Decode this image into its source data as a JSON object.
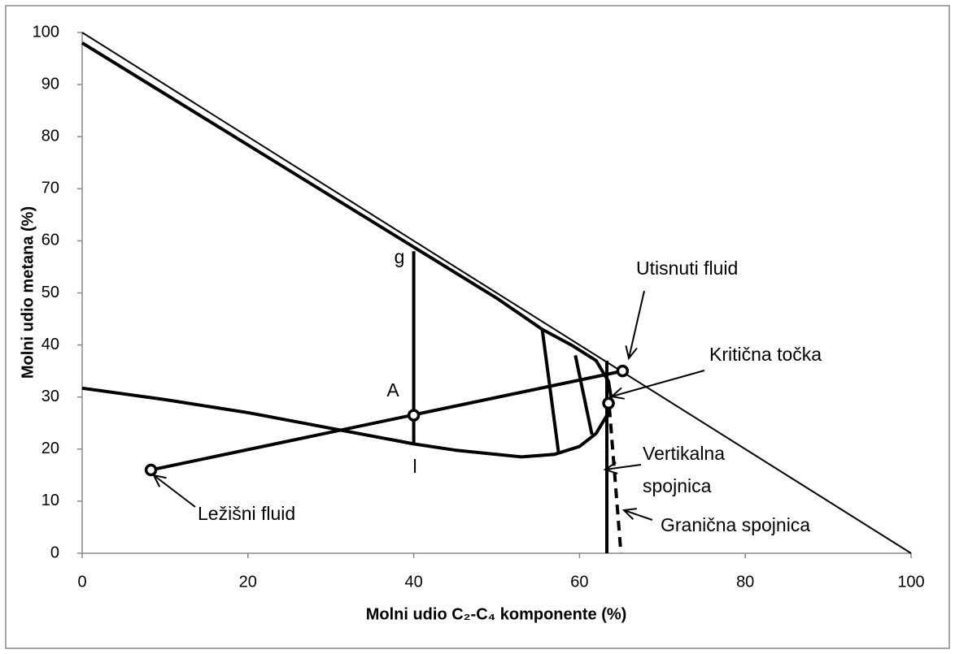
{
  "chart_data": {
    "type": "line",
    "xlabel": "Molni udio C₂-C₄ komponente (%)",
    "ylabel": "Molni udio metana  (%)",
    "xlim": [
      0,
      100
    ],
    "ylim": [
      0,
      100
    ],
    "xticks": [
      0,
      20,
      40,
      60,
      80,
      100
    ],
    "yticks": [
      0,
      10,
      20,
      30,
      40,
      50,
      60,
      70,
      80,
      90,
      100
    ],
    "color": "#000000",
    "series": [
      {
        "style": "thin",
        "x": [
          0,
          100
        ],
        "y": [
          100,
          0
        ]
      },
      {
        "style": "bold",
        "x": [
          0,
          10,
          20,
          30,
          40,
          50,
          55.5,
          59,
          62,
          63.5,
          63.8,
          63.5,
          62,
          60,
          57,
          53,
          45,
          40,
          30,
          20,
          10,
          0
        ],
        "y": [
          98,
          88.2,
          78.4,
          68.6,
          58.8,
          49,
          43,
          40,
          37,
          33,
          30,
          27,
          23,
          20.5,
          19,
          18.5,
          19.8,
          21,
          24,
          27,
          29.5,
          31.7
        ]
      },
      {
        "style": "bold",
        "x": [
          40,
          40
        ],
        "y": [
          58,
          21
        ]
      },
      {
        "style": "bold",
        "x": [
          55.5,
          57.5
        ],
        "y": [
          43,
          19
        ]
      },
      {
        "style": "bold",
        "x": [
          59.5,
          61.5
        ],
        "y": [
          38,
          22.8
        ]
      },
      {
        "style": "bold",
        "x": [
          63.3,
          63.3
        ],
        "y": [
          37,
          0
        ]
      },
      {
        "style": "bold",
        "x": [
          8.3,
          65.2
        ],
        "y": [
          16,
          35
        ]
      },
      {
        "style": "dashed",
        "x": [
          63.6,
          64.5,
          65
        ],
        "y": [
          28,
          10,
          0
        ]
      }
    ],
    "points": {
      "x": [
        8.3,
        40,
        63.5,
        65.2
      ],
      "y": [
        16,
        26.5,
        28.8,
        35
      ]
    },
    "annotations": [
      "Utisnuti fluid",
      "Kritična točka",
      "Vertikalna",
      "spojnica",
      "Granična spojnica",
      "Ležišni fluid",
      "g",
      "l",
      "A"
    ]
  }
}
